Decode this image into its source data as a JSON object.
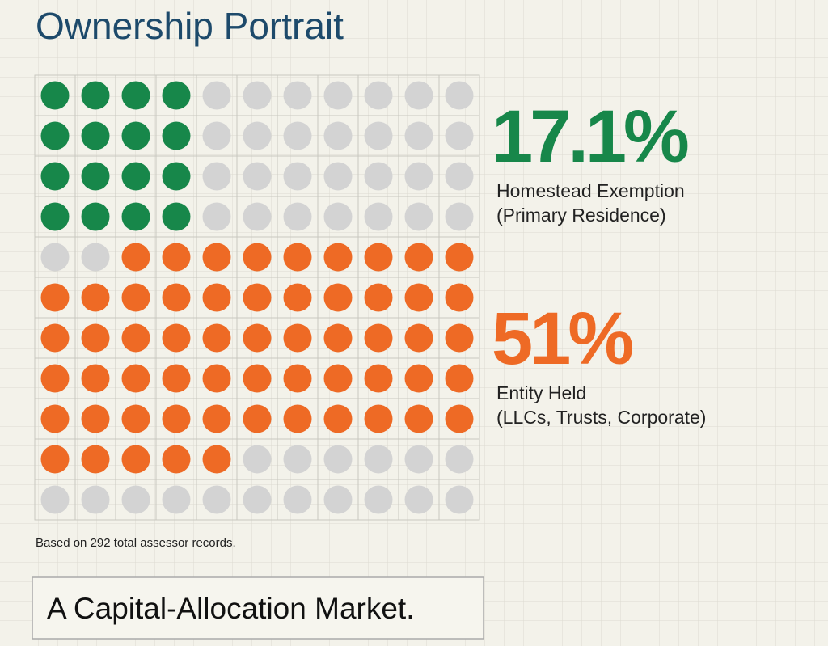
{
  "title": "Ownership Portrait",
  "chart_data": {
    "type": "waffle",
    "cells": 121,
    "empty_color": "#d3d3d3",
    "series": [
      {
        "name": "Homestead Exemption",
        "description": "(Primary Residence)",
        "color": "#17874a",
        "values": [
          16
        ],
        "stat": 17.1,
        "stat_label": "17.1%"
      },
      {
        "name": "Entity Held",
        "description": "(LLCs, Trusts, Corporate)",
        "color": "#ee6a25",
        "values": [
          58
        ],
        "stat": 51,
        "stat_label": "51%"
      }
    ]
  },
  "note": "Based on 292 total assessor records.",
  "callout": "A Capital-Allocation Market."
}
